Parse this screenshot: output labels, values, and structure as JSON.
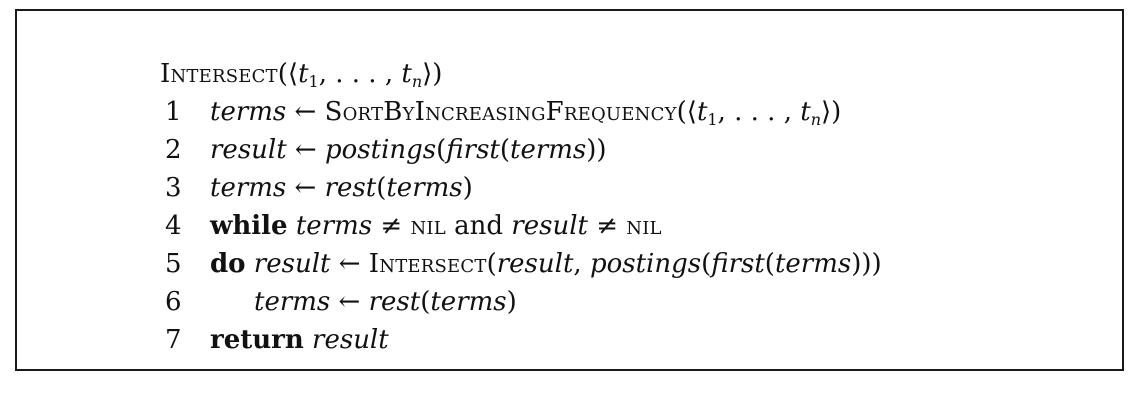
{
  "algorithm": {
    "name": "Intersect",
    "header_args": "(⟨t1, . . . , tn⟩)",
    "lines": [
      {
        "number": "1",
        "text": "terms ← SortByIncreasingFrequency(⟨t1, . . . , tn⟩)"
      },
      {
        "number": "2",
        "text": "result ← postings(first(terms))"
      },
      {
        "number": "3",
        "text": "terms ← rest(terms)"
      },
      {
        "number": "4",
        "text": "while terms ≠ nil and result ≠ nil"
      },
      {
        "number": "5",
        "text": "do result ← Intersect(result, postings(first(terms)))"
      },
      {
        "number": "6",
        "text": "terms ← rest(terms)"
      },
      {
        "number": "7",
        "text": "return result"
      }
    ]
  }
}
